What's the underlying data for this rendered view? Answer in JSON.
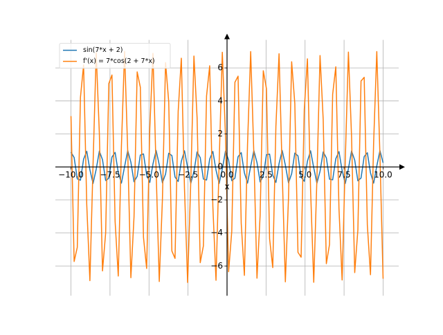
{
  "chart_data": {
    "type": "line",
    "x_label": "x",
    "x": [
      -10.0,
      -9.798,
      -9.596,
      -9.394,
      -9.192,
      -8.99,
      -8.788,
      -8.586,
      -8.384,
      -8.182,
      -7.98,
      -7.778,
      -7.576,
      -7.374,
      -7.172,
      -6.97,
      -6.768,
      -6.566,
      -6.364,
      -6.162,
      -5.96,
      -5.758,
      -5.556,
      -5.354,
      -5.152,
      -4.949,
      -4.747,
      -4.545,
      -4.343,
      -4.141,
      -3.939,
      -3.737,
      -3.535,
      -3.333,
      -3.131,
      -2.929,
      -2.727,
      -2.525,
      -2.323,
      -2.121,
      -1.919,
      -1.717,
      -1.515,
      -1.313,
      -1.111,
      -0.909,
      -0.707,
      -0.505,
      -0.303,
      -0.101,
      0.101,
      0.303,
      0.505,
      0.707,
      0.909,
      1.111,
      1.313,
      1.515,
      1.717,
      1.919,
      2.121,
      2.323,
      2.525,
      2.727,
      2.929,
      3.131,
      3.333,
      3.535,
      3.737,
      3.939,
      4.141,
      4.343,
      4.545,
      4.747,
      4.949,
      5.152,
      5.354,
      5.556,
      5.758,
      5.96,
      6.162,
      6.364,
      6.566,
      6.768,
      6.97,
      7.172,
      7.374,
      7.576,
      7.778,
      7.98,
      8.182,
      8.384,
      8.586,
      8.788,
      8.99,
      9.192,
      9.394,
      9.596,
      9.798,
      10.0
    ],
    "series": [
      {
        "name": "sin(7*x + 2)",
        "color": "#1f77b4",
        "values": [
          0.9,
          0.57,
          -0.72,
          -0.8,
          0.47,
          0.95,
          -0.17,
          -1.0,
          -0.14,
          0.96,
          0.44,
          -0.82,
          -0.69,
          0.6,
          0.88,
          -0.33,
          -0.98,
          0.02,
          0.99,
          0.29,
          -0.9,
          -0.57,
          0.72,
          0.79,
          -0.48,
          -0.94,
          0.18,
          1.0,
          0.13,
          -0.96,
          -0.43,
          0.83,
          0.69,
          -0.61,
          -0.88,
          0.34,
          0.98,
          -0.03,
          -0.99,
          -0.28,
          0.91,
          0.56,
          -0.73,
          -0.79,
          0.48,
          0.94,
          -0.19,
          -1.0,
          -0.12,
          0.96,
          0.42,
          -0.83,
          -0.68,
          0.62,
          0.87,
          -0.35,
          -0.98,
          0.04,
          0.99,
          0.27,
          -0.91,
          -0.55,
          0.74,
          0.78,
          -0.49,
          -0.94,
          0.2,
          1.0,
          0.11,
          -0.96,
          -0.41,
          0.84,
          0.67,
          -0.62,
          -0.87,
          0.35,
          0.98,
          -0.05,
          -0.99,
          -0.26,
          0.91,
          0.55,
          -0.74,
          -0.78,
          0.5,
          0.93,
          -0.21,
          -1.0,
          -0.1,
          0.97,
          0.41,
          -0.84,
          -0.67,
          0.63,
          0.86,
          -0.36,
          -0.98,
          0.06,
          0.99,
          0.25
        ]
      },
      {
        "name": "f'(x) = 7*cos(2 + 7*x)",
        "color": "#ff7f0e",
        "values": [
          3.08,
          -5.73,
          -4.87,
          4.21,
          6.18,
          -2.27,
          -6.89,
          0.13,
          6.93,
          2.04,
          -6.3,
          -4.0,
          5.05,
          5.57,
          -3.31,
          -6.61,
          1.25,
          7.0,
          0.94,
          -6.71,
          -3.02,
          5.76,
          4.83,
          -4.26,
          -6.15,
          2.34,
          6.88,
          -0.19,
          -6.94,
          -1.97,
          6.32,
          3.95,
          -5.09,
          -5.54,
          3.36,
          6.59,
          -1.31,
          -7.0,
          -0.88,
          6.72,
          2.98,
          -5.8,
          -4.78,
          4.3,
          6.13,
          -2.39,
          -6.87,
          0.25,
          6.95,
          1.92,
          -6.35,
          -3.9,
          5.13,
          5.5,
          -3.42,
          -6.57,
          1.36,
          6.99,
          0.82,
          -6.74,
          -2.92,
          5.83,
          4.74,
          -4.35,
          -6.1,
          2.45,
          6.86,
          -0.31,
          -6.96,
          -1.86,
          6.37,
          3.85,
          -5.17,
          -5.47,
          3.47,
          6.55,
          -1.42,
          -6.99,
          -0.76,
          6.75,
          2.87,
          -5.86,
          -4.7,
          4.4,
          6.07,
          -2.51,
          -6.85,
          0.36,
          6.96,
          1.81,
          -6.4,
          -3.81,
          5.21,
          5.43,
          -3.51,
          -6.53,
          1.48,
          6.99,
          0.7,
          -6.77
        ]
      }
    ],
    "xlim": [
      -11,
      11
    ],
    "ylim": [
      -7.8,
      7.7
    ],
    "xticks": [
      {
        "value": -10,
        "label": "−10.0"
      },
      {
        "value": -7.5,
        "label": "−7.5"
      },
      {
        "value": -5,
        "label": "−5.0"
      },
      {
        "value": -2.5,
        "label": "−2.5"
      },
      {
        "value": 0,
        "label": "0.0"
      },
      {
        "value": 2.5,
        "label": "2.5"
      },
      {
        "value": 5,
        "label": "5.0"
      },
      {
        "value": 7.5,
        "label": "7.5"
      },
      {
        "value": 10,
        "label": "10.0"
      }
    ],
    "yticks": [
      {
        "value": -6,
        "label": "−6"
      },
      {
        "value": -4,
        "label": "−4"
      },
      {
        "value": -2,
        "label": "−2"
      },
      0,
      2,
      4,
      6
    ],
    "grid": true,
    "legend": "upper left"
  }
}
